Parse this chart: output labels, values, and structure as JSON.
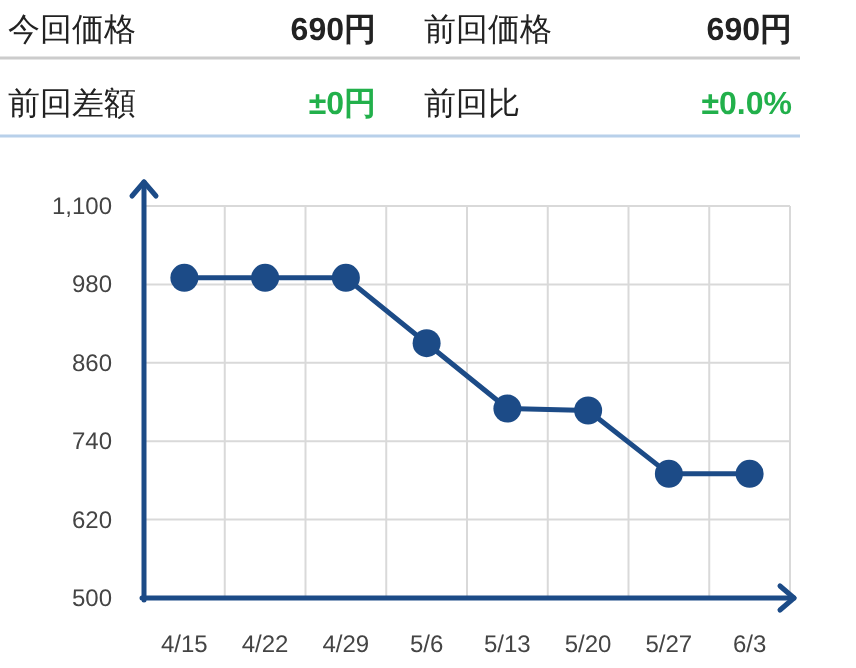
{
  "chart_data": [
    {
      "type": "other",
      "annotations": [
        "今回価格",
        "690円",
        "前回価格",
        "690円",
        "前回差額",
        "±0円",
        "前回比",
        "±0.0%"
      ]
    },
    {
      "type": "line",
      "categories": [
        "4/15",
        "4/22",
        "4/29",
        "5/6",
        "5/13",
        "5/20",
        "5/27",
        "6/3"
      ],
      "series": [
        {
          "color": "#1c4b87",
          "values": [
            990,
            990,
            990,
            890,
            790,
            787,
            690,
            690
          ]
        }
      ],
      "ylim": [
        500,
        1100
      ],
      "yticks": [
        500,
        620,
        740,
        860,
        980,
        {
          "value": 1100,
          "label": "1,100"
        }
      ],
      "grid": true,
      "marker": "circle",
      "line_style": "solid"
    }
  ]
}
